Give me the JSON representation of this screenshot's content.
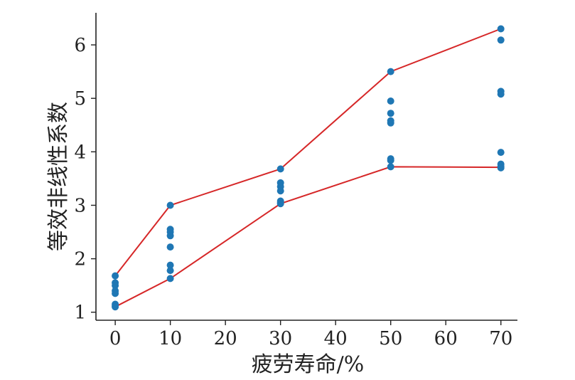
{
  "chart_data": {
    "type": "scatter",
    "title": "",
    "xlabel": "疲劳寿命/%",
    "ylabel": "等效非线性系数",
    "xlim": [
      -3.5,
      73
    ],
    "ylim": [
      0.85,
      6.6
    ],
    "xticks": [
      0,
      10,
      20,
      30,
      40,
      50,
      60,
      70
    ],
    "yticks": [
      1,
      2,
      3,
      4,
      5,
      6
    ],
    "grid": false,
    "legend": "none",
    "points_color": "#1f77b4",
    "line_color": "#d62728",
    "points": [
      {
        "x": 0,
        "y": 1.68
      },
      {
        "x": 0,
        "y": 1.55
      },
      {
        "x": 0,
        "y": 1.5
      },
      {
        "x": 0,
        "y": 1.4
      },
      {
        "x": 0,
        "y": 1.35
      },
      {
        "x": 0,
        "y": 1.15
      },
      {
        "x": 0,
        "y": 1.12
      },
      {
        "x": 0,
        "y": 1.1
      },
      {
        "x": 10,
        "y": 3.0
      },
      {
        "x": 10,
        "y": 2.55
      },
      {
        "x": 10,
        "y": 2.5
      },
      {
        "x": 10,
        "y": 2.43
      },
      {
        "x": 10,
        "y": 2.22
      },
      {
        "x": 10,
        "y": 1.88
      },
      {
        "x": 10,
        "y": 1.78
      },
      {
        "x": 10,
        "y": 1.63
      },
      {
        "x": 30,
        "y": 3.68
      },
      {
        "x": 30,
        "y": 3.42
      },
      {
        "x": 30,
        "y": 3.35
      },
      {
        "x": 30,
        "y": 3.27
      },
      {
        "x": 30,
        "y": 3.08
      },
      {
        "x": 30,
        "y": 3.05
      },
      {
        "x": 30,
        "y": 3.03
      },
      {
        "x": 50,
        "y": 5.5
      },
      {
        "x": 50,
        "y": 4.95
      },
      {
        "x": 50,
        "y": 4.72
      },
      {
        "x": 50,
        "y": 4.58
      },
      {
        "x": 50,
        "y": 4.54
      },
      {
        "x": 50,
        "y": 3.87
      },
      {
        "x": 50,
        "y": 3.84
      },
      {
        "x": 50,
        "y": 3.72
      },
      {
        "x": 70,
        "y": 6.3
      },
      {
        "x": 70,
        "y": 6.09
      },
      {
        "x": 70,
        "y": 5.13
      },
      {
        "x": 70,
        "y": 5.08
      },
      {
        "x": 70,
        "y": 3.99
      },
      {
        "x": 70,
        "y": 3.77
      },
      {
        "x": 70,
        "y": 3.73
      },
      {
        "x": 70,
        "y": 3.7
      }
    ],
    "series": [
      {
        "x": [
          0,
          10,
          30,
          50,
          70
        ],
        "values": [
          1.68,
          3.0,
          3.68,
          5.5,
          6.3
        ]
      },
      {
        "x": [
          0,
          10,
          30,
          50,
          70
        ],
        "values": [
          1.1,
          1.63,
          3.03,
          3.72,
          3.71
        ]
      }
    ]
  }
}
